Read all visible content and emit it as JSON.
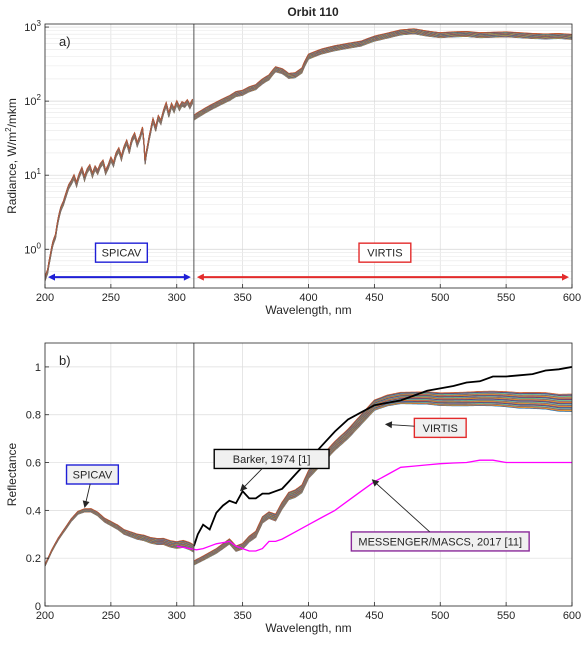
{
  "figure_title": "Orbit 110",
  "chart_data": [
    {
      "type": "line",
      "panel_label": "a)",
      "xlabel": "Wavelength, nm",
      "ylabel": "Radiance, W/m²/mkm",
      "ylabel_parts": [
        "Radiance, W/m",
        "2",
        "/mkm"
      ],
      "yscale": "log",
      "xlim": [
        200,
        600
      ],
      "ylim": [
        0.3,
        1100
      ],
      "xticks": [
        200,
        250,
        300,
        350,
        400,
        450,
        500,
        550,
        600
      ],
      "yticks": [
        {
          "base": "10",
          "exp": "0",
          "value": 1
        },
        {
          "base": "10",
          "exp": "1",
          "value": 10
        },
        {
          "base": "10",
          "exp": "2",
          "value": 100
        },
        {
          "base": "10",
          "exp": "3",
          "value": 1000
        }
      ],
      "grid": true,
      "divider_x": 313,
      "spectra_count": 30,
      "spicav": {
        "x": [
          200,
          202,
          204,
          206,
          208,
          210,
          212,
          214,
          216,
          218,
          220,
          222,
          224,
          226,
          228,
          230,
          232,
          234,
          236,
          238,
          240,
          242,
          244,
          246,
          248,
          250,
          252,
          254,
          256,
          258,
          260,
          262,
          264,
          266,
          268,
          270,
          272,
          274,
          276,
          278,
          280,
          282,
          284,
          286,
          288,
          290,
          292,
          294,
          296,
          298,
          300,
          302,
          304,
          306,
          308,
          310,
          312
        ],
        "y": [
          0.4,
          0.5,
          0.8,
          1.2,
          1.5,
          2.5,
          3.5,
          4.2,
          5.5,
          7.0,
          8.0,
          9.5,
          7.5,
          10.0,
          12.0,
          9.0,
          11.5,
          13.0,
          10.0,
          12.5,
          11.0,
          13.5,
          15.0,
          11.0,
          13.0,
          16.5,
          14.0,
          19.0,
          22.0,
          17.0,
          23.0,
          28.0,
          21.0,
          30.0,
          35.0,
          26.0,
          32.0,
          42.0,
          15.0,
          25.0,
          38.0,
          55.0,
          42.0,
          60.0,
          52.0,
          72.0,
          90.0,
          65.0,
          88.0,
          75.0,
          95.0,
          80.0,
          92.0,
          88.0,
          98.0,
          85.0,
          100.0
        ]
      },
      "virtis": {
        "x": [
          313,
          320,
          330,
          340,
          345,
          350,
          355,
          360,
          365,
          370,
          375,
          380,
          385,
          390,
          395,
          400,
          410,
          420,
          430,
          440,
          450,
          460,
          470,
          480,
          490,
          500,
          510,
          520,
          530,
          540,
          550,
          560,
          570,
          580,
          590,
          600
        ],
        "y": [
          60,
          72,
          90,
          110,
          125,
          130,
          145,
          155,
          185,
          210,
          270,
          255,
          220,
          225,
          260,
          400,
          470,
          520,
          560,
          600,
          700,
          770,
          850,
          880,
          820,
          780,
          800,
          810,
          780,
          790,
          800,
          780,
          760,
          750,
          760,
          740
        ]
      },
      "annotations": [
        {
          "text": "SPICAV",
          "color": "#1f1fd6",
          "x_from": 200,
          "x_to": 313,
          "arrow_y": 0.42,
          "box_x": 258,
          "box_y": 0.9
        },
        {
          "text": "VIRTIS",
          "color": "#e32b2b",
          "x_from": 313,
          "x_to": 600,
          "arrow_y": 0.42,
          "box_x": 458,
          "box_y": 0.9
        }
      ]
    },
    {
      "type": "line",
      "panel_label": "b)",
      "xlabel": "Wavelength, nm",
      "ylabel": "Reflectance",
      "xlim": [
        200,
        600
      ],
      "ylim": [
        0,
        1.1
      ],
      "xticks": [
        200,
        250,
        300,
        350,
        400,
        450,
        500,
        550,
        600
      ],
      "yticks": [
        0,
        0.2,
        0.4,
        0.6,
        0.8,
        1
      ],
      "grid": true,
      "divider_x": 313,
      "spectra_count": 30,
      "spicav": {
        "x": [
          200,
          205,
          210,
          215,
          220,
          225,
          230,
          235,
          240,
          245,
          250,
          255,
          260,
          265,
          270,
          275,
          280,
          285,
          290,
          295,
          300,
          305,
          310,
          313
        ],
        "y": [
          0.17,
          0.23,
          0.28,
          0.32,
          0.36,
          0.39,
          0.4,
          0.4,
          0.385,
          0.36,
          0.345,
          0.33,
          0.31,
          0.3,
          0.29,
          0.285,
          0.275,
          0.27,
          0.27,
          0.26,
          0.255,
          0.26,
          0.25,
          0.24
        ]
      },
      "virtis": {
        "x": [
          313,
          320,
          330,
          335,
          340,
          345,
          350,
          355,
          360,
          365,
          370,
          375,
          380,
          385,
          390,
          395,
          400,
          410,
          420,
          430,
          440,
          450,
          460,
          470,
          480,
          490,
          500,
          510,
          520,
          530,
          540,
          550,
          560,
          570,
          580,
          590,
          600
        ],
        "y": [
          0.18,
          0.2,
          0.23,
          0.25,
          0.27,
          0.24,
          0.25,
          0.28,
          0.3,
          0.36,
          0.38,
          0.37,
          0.42,
          0.46,
          0.47,
          0.49,
          0.55,
          0.61,
          0.67,
          0.72,
          0.78,
          0.84,
          0.86,
          0.87,
          0.87,
          0.87,
          0.865,
          0.865,
          0.866,
          0.868,
          0.868,
          0.865,
          0.86,
          0.86,
          0.858,
          0.85,
          0.85
        ]
      },
      "barker": {
        "x": [
          313,
          316,
          320,
          325,
          330,
          335,
          340,
          345,
          350,
          355,
          360,
          365,
          370,
          375,
          380,
          385,
          390,
          400,
          410,
          420,
          430,
          440,
          450,
          460,
          470,
          480,
          490,
          500,
          510,
          520,
          530,
          540,
          550,
          560,
          570,
          580,
          590,
          600
        ],
        "y": [
          0.25,
          0.3,
          0.34,
          0.32,
          0.39,
          0.42,
          0.44,
          0.43,
          0.48,
          0.45,
          0.45,
          0.47,
          0.47,
          0.48,
          0.49,
          0.52,
          0.55,
          0.61,
          0.67,
          0.73,
          0.78,
          0.81,
          0.84,
          0.85,
          0.86,
          0.88,
          0.9,
          0.91,
          0.92,
          0.935,
          0.94,
          0.96,
          0.96,
          0.965,
          0.97,
          0.985,
          0.99,
          1.0
        ]
      },
      "messenger": {
        "x": [
          300,
          305,
          310,
          315,
          320,
          325,
          330,
          335,
          340,
          345,
          350,
          355,
          360,
          365,
          370,
          375,
          380,
          390,
          400,
          410,
          420,
          430,
          440,
          450,
          460,
          470,
          480,
          490,
          500,
          510,
          520,
          530,
          540,
          550,
          560,
          570,
          580,
          590,
          600
        ],
        "y": [
          0.25,
          0.245,
          0.24,
          0.235,
          0.24,
          0.25,
          0.26,
          0.265,
          0.27,
          0.25,
          0.24,
          0.23,
          0.23,
          0.24,
          0.27,
          0.27,
          0.28,
          0.31,
          0.34,
          0.37,
          0.4,
          0.44,
          0.48,
          0.52,
          0.55,
          0.58,
          0.585,
          0.59,
          0.595,
          0.598,
          0.6,
          0.61,
          0.61,
          0.6,
          0.6,
          0.6,
          0.6,
          0.6,
          0.6
        ]
      },
      "annotations": [
        {
          "text": "SPICAV",
          "color": "#1f1fd6",
          "box_x": 236,
          "box_y": 0.55,
          "target_x": 230,
          "target_y": 0.41
        },
        {
          "text": "Barker, 1974 [1]",
          "color": "#000000",
          "box_x": 372,
          "box_y": 0.615,
          "target_x": 348,
          "target_y": 0.48
        },
        {
          "text": "VIRTIS",
          "color": "#e32b2b",
          "box_x": 500,
          "box_y": 0.745,
          "target_x": 458,
          "target_y": 0.76
        },
        {
          "text": "MESSENGER/MASCS, 2017 [11]",
          "color": "#8a2a9a",
          "box_x": 500,
          "box_y": 0.27,
          "target_x": 448,
          "target_y": 0.53
        }
      ],
      "series": [
        {
          "name": "Barker, 1974 [1]",
          "color": "#000000"
        },
        {
          "name": "MESSENGER/MASCS, 2017 [11]",
          "color": "#ff00ff"
        }
      ]
    }
  ]
}
